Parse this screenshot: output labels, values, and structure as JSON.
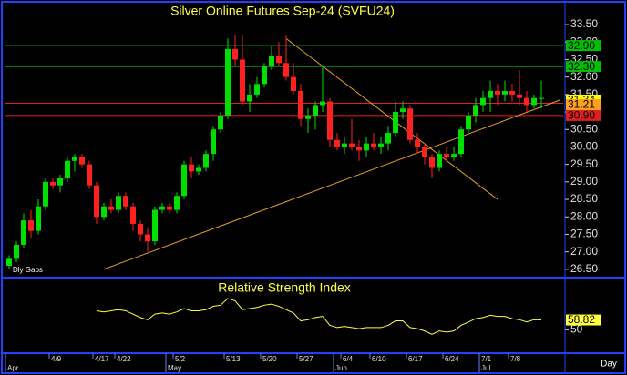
{
  "chart_data": {
    "type": "candlestick",
    "title": "Silver Online Futures Sep-24 (SVFU24)",
    "note": "Dly Gaps",
    "x_unit_label": "Day",
    "categories": [
      null,
      null,
      null,
      null,
      null,
      null,
      "4/9",
      null,
      null,
      null,
      null,
      null,
      "4/17",
      null,
      null,
      "4/22",
      null,
      null,
      null,
      null,
      null,
      null,
      null,
      "5/2",
      null,
      null,
      null,
      null,
      null,
      null,
      "5/13",
      null,
      null,
      null,
      null,
      "5/20",
      null,
      null,
      null,
      null,
      "5/27",
      null,
      null,
      null,
      null,
      null,
      "6/4",
      null,
      null,
      null,
      "6/10",
      null,
      null,
      null,
      null,
      "6/17",
      null,
      null,
      null,
      null,
      "6/24",
      null,
      null,
      null,
      null,
      "7/1",
      null,
      null,
      null,
      "7/8",
      null,
      null,
      null,
      null
    ],
    "months": [
      "Apr",
      null,
      null,
      null,
      null,
      null,
      null,
      null,
      null,
      null,
      null,
      null,
      null,
      null,
      null,
      null,
      null,
      null,
      null,
      null,
      null,
      null,
      "May",
      null,
      null,
      null,
      null,
      null,
      null,
      null,
      null,
      null,
      null,
      null,
      null,
      null,
      null,
      null,
      null,
      null,
      null,
      null,
      null,
      null,
      null,
      "Jun",
      null,
      null,
      null,
      null,
      null,
      null,
      null,
      null,
      null,
      null,
      null,
      null,
      null,
      null,
      null,
      null,
      null,
      null,
      null,
      "Jul",
      null,
      null,
      null,
      null,
      null,
      null,
      null,
      null
    ],
    "ohlc": [
      [
        26.6,
        26.9,
        26.5,
        26.8
      ],
      [
        26.8,
        27.3,
        26.7,
        27.2
      ],
      [
        27.2,
        28.1,
        27.1,
        27.9
      ],
      [
        27.9,
        28.2,
        27.4,
        27.6
      ],
      [
        27.6,
        28.5,
        27.5,
        28.3
      ],
      [
        28.3,
        29.1,
        28.2,
        29.0
      ],
      [
        29.0,
        29.1,
        28.8,
        28.9
      ],
      [
        28.9,
        29.2,
        28.7,
        29.1
      ],
      [
        29.1,
        29.7,
        29.0,
        29.6
      ],
      [
        29.6,
        29.8,
        29.3,
        29.7
      ],
      [
        29.7,
        29.8,
        29.4,
        29.5
      ],
      [
        29.5,
        29.6,
        28.8,
        28.9
      ],
      [
        28.9,
        29.0,
        27.8,
        28.0
      ],
      [
        28.0,
        28.4,
        27.9,
        28.3
      ],
      [
        28.3,
        28.5,
        28.1,
        28.2
      ],
      [
        28.2,
        28.7,
        28.1,
        28.6
      ],
      [
        28.6,
        28.7,
        28.2,
        28.3
      ],
      [
        28.3,
        28.4,
        27.6,
        27.8
      ],
      [
        27.8,
        27.9,
        27.3,
        27.5
      ],
      [
        27.5,
        27.7,
        27.0,
        27.3
      ],
      [
        27.3,
        28.3,
        27.2,
        28.2
      ],
      [
        28.2,
        28.4,
        28.1,
        28.3
      ],
      [
        28.3,
        28.4,
        28.1,
        28.2
      ],
      [
        28.2,
        28.7,
        28.1,
        28.6
      ],
      [
        28.6,
        29.6,
        28.5,
        29.5
      ],
      [
        29.5,
        29.7,
        29.1,
        29.3
      ],
      [
        29.3,
        29.5,
        29.2,
        29.4
      ],
      [
        29.4,
        29.9,
        29.3,
        29.8
      ],
      [
        29.8,
        30.6,
        29.6,
        30.5
      ],
      [
        30.5,
        31.0,
        30.4,
        30.9
      ],
      [
        30.9,
        33.1,
        30.8,
        32.8
      ],
      [
        32.8,
        33.2,
        32.3,
        32.5
      ],
      [
        32.5,
        33.2,
        31.2,
        31.3
      ],
      [
        31.3,
        31.8,
        31.0,
        31.5
      ],
      [
        31.5,
        32.0,
        31.4,
        31.8
      ],
      [
        31.8,
        32.4,
        31.7,
        32.3
      ],
      [
        32.3,
        32.9,
        32.2,
        32.6
      ],
      [
        32.6,
        33.0,
        32.3,
        32.4
      ],
      [
        32.4,
        33.2,
        31.9,
        32.0
      ],
      [
        32.0,
        32.4,
        31.5,
        31.6
      ],
      [
        31.6,
        31.8,
        30.6,
        30.8
      ],
      [
        30.8,
        31.1,
        30.4,
        30.9
      ],
      [
        30.9,
        31.3,
        30.5,
        31.2
      ],
      [
        31.2,
        32.3,
        31.0,
        31.3
      ],
      [
        31.3,
        31.4,
        30.0,
        30.2
      ],
      [
        30.2,
        30.4,
        29.9,
        30.0
      ],
      [
        30.0,
        30.3,
        29.8,
        30.1
      ],
      [
        30.1,
        30.8,
        29.9,
        30.0
      ],
      [
        30.0,
        30.2,
        29.6,
        29.9
      ],
      [
        29.9,
        30.3,
        29.7,
        30.1
      ],
      [
        30.1,
        30.4,
        29.9,
        30.0
      ],
      [
        30.0,
        30.3,
        29.8,
        30.1
      ],
      [
        30.1,
        30.6,
        29.9,
        30.4
      ],
      [
        30.4,
        31.3,
        30.3,
        31.0
      ],
      [
        31.0,
        31.3,
        30.8,
        31.1
      ],
      [
        31.1,
        31.2,
        30.1,
        30.2
      ],
      [
        30.2,
        30.4,
        29.8,
        30.0
      ],
      [
        30.0,
        30.1,
        29.5,
        29.7
      ],
      [
        29.7,
        29.8,
        29.1,
        29.4
      ],
      [
        29.4,
        29.9,
        29.3,
        29.8
      ],
      [
        29.8,
        30.0,
        29.6,
        29.7
      ],
      [
        29.7,
        30.0,
        29.6,
        29.8
      ],
      [
        29.8,
        30.6,
        29.7,
        30.5
      ],
      [
        30.5,
        31.0,
        30.4,
        30.9
      ],
      [
        30.9,
        31.4,
        30.7,
        31.2
      ],
      [
        31.2,
        31.6,
        31.0,
        31.4
      ],
      [
        31.4,
        31.9,
        31.0,
        31.6
      ],
      [
        31.6,
        31.8,
        31.2,
        31.5
      ],
      [
        31.5,
        31.9,
        31.3,
        31.6
      ],
      [
        31.6,
        31.8,
        31.3,
        31.5
      ],
      [
        31.5,
        32.2,
        31.2,
        31.4
      ],
      [
        31.4,
        31.6,
        31.0,
        31.2
      ],
      [
        31.2,
        31.5,
        31.1,
        31.4
      ],
      [
        31.4,
        31.9,
        31.1,
        31.4
      ]
    ],
    "up_color": "#00e000",
    "down_color": "#ff2020",
    "ylim": [
      26.34,
      34.1
    ],
    "yticks": [
      {
        "value": 26.5,
        "label": "26.50"
      },
      {
        "value": 27,
        "label": "27.00"
      },
      {
        "value": 27.5,
        "label": "27.50"
      },
      {
        "value": 28,
        "label": "28.00"
      },
      {
        "value": 28.5,
        "label": "28.50"
      },
      {
        "value": 29,
        "label": "29.00"
      },
      {
        "value": 29.5,
        "label": "29.50"
      },
      {
        "value": 30,
        "label": "30.00"
      },
      {
        "value": 30.5,
        "label": "30.50"
      },
      {
        "value": 31,
        "label": "31.00"
      },
      {
        "value": 31.5,
        "label": "31.50"
      },
      {
        "value": 32,
        "label": "32.00"
      },
      {
        "value": 32.5,
        "label": "32.50"
      },
      {
        "value": 33,
        "label": "33.00"
      },
      {
        "value": 33.5,
        "label": "33.50"
      }
    ],
    "levels": [
      {
        "value": 32.9,
        "label": "32.90",
        "color": "#00c000"
      },
      {
        "value": 32.3,
        "label": "32.30",
        "color": "#00c000"
      },
      {
        "value": 31.25,
        "label": "31.25",
        "color": "#e02020"
      },
      {
        "value": 30.9,
        "label": "30.90",
        "color": "#e02020"
      }
    ],
    "price_labels": [
      {
        "value": 31.34,
        "color": "#ffff00"
      },
      {
        "value": 31.21,
        "color": "#ffa020"
      }
    ],
    "trendlines": [
      {
        "from": [
          13,
          26.5
        ],
        "to": [
          75.5,
          31.34
        ],
        "color": "#e8a020"
      },
      {
        "from": [
          38,
          33.1
        ],
        "to": [
          67,
          28.5
        ],
        "color": "#e8a020"
      }
    ],
    "rsi": {
      "title": "Relative Strength Index",
      "color": "#ffff40",
      "ylim": [
        30,
        95
      ],
      "yticks": [
        50
      ],
      "values": [
        null,
        null,
        null,
        null,
        null,
        null,
        null,
        null,
        null,
        null,
        null,
        null,
        67,
        66,
        67,
        68,
        67,
        64,
        61,
        59,
        64,
        65,
        64,
        66,
        69,
        67,
        67,
        68,
        71,
        72,
        78,
        76,
        68,
        69,
        70,
        72,
        73,
        71,
        68,
        65,
        58,
        59,
        61,
        62,
        54,
        52,
        53,
        52,
        51,
        52,
        52,
        52,
        54,
        58,
        58,
        52,
        51,
        49,
        46,
        49,
        48,
        49,
        54,
        57,
        60,
        61,
        63,
        62,
        62,
        60,
        59,
        57,
        59,
        58.82
      ]
    }
  }
}
